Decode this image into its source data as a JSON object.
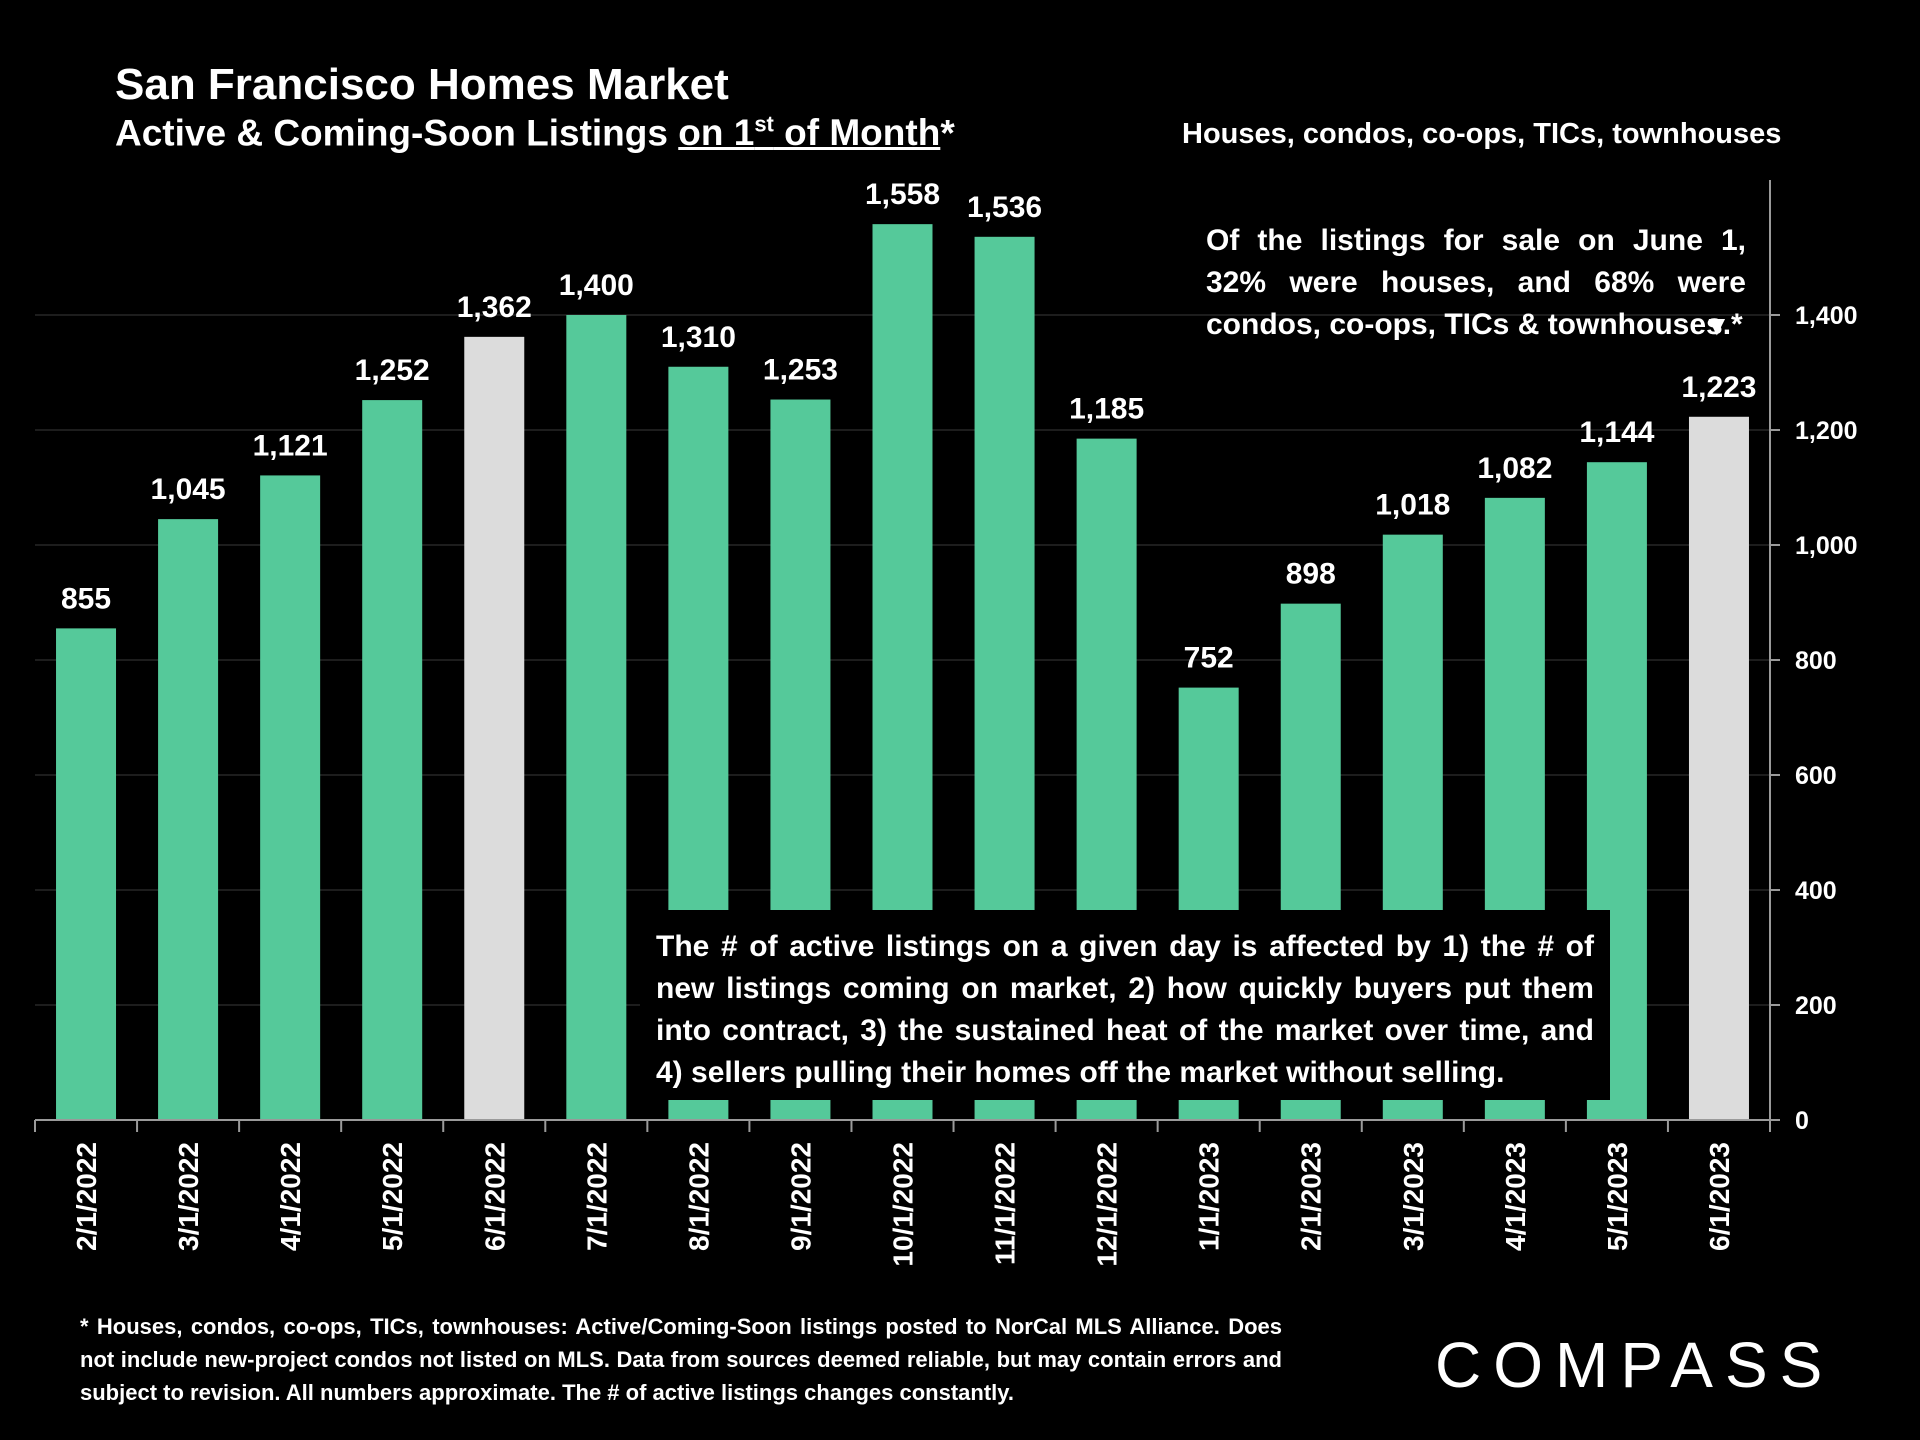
{
  "title": "San Francisco Homes Market",
  "subtitle": {
    "prefix": "Active & Coming-Soon Listings ",
    "underlined_pre": "on 1",
    "superscript": "st",
    "underlined_post": " of Month",
    "suffix": "*"
  },
  "scope": "Houses, condos, co-ops, TICs, townhouses",
  "note_top": "Of the listings for sale on June 1, 32% were houses, and 68% were condos, co-ops, TICs & townhouses.*",
  "arrow_glyph": "▼",
  "note_mid": "The # of active listings on a given day is affected by 1) the # of new listings coming on market, 2) how quickly buyers put them into contract, 3) the sustained heat of the market over time, and 4) sellers pulling their homes off the market without selling.",
  "footnote": "* Houses, condos, co-ops, TICs, townhouses: Active/Coming-Soon listings posted to NorCal MLS Alliance. Does not include new-project condos not listed on MLS. Data from sources deemed reliable, but may contain errors and subject to revision. All numbers approximate. The # of active listings changes constantly.",
  "logo": "COMPASS",
  "colors": {
    "bar": "#55C99A",
    "highlight": "#DCDCDC",
    "grid": "#3a3a3a",
    "axis": "#9a9a9a"
  },
  "chart_data": {
    "type": "bar",
    "title": "San Francisco Homes Market",
    "xlabel": "",
    "ylabel": "",
    "categories": [
      "2/1/2022",
      "3/1/2022",
      "4/1/2022",
      "5/1/2022",
      "6/1/2022",
      "7/1/2022",
      "8/1/2022",
      "9/1/2022",
      "10/1/2022",
      "11/1/2022",
      "12/1/2022",
      "1/1/2023",
      "2/1/2023",
      "3/1/2023",
      "4/1/2023",
      "5/1/2023",
      "6/1/2023"
    ],
    "values": [
      855,
      1045,
      1121,
      1252,
      1362,
      1400,
      1310,
      1253,
      1558,
      1536,
      1185,
      752,
      898,
      1018,
      1082,
      1144,
      1223
    ],
    "value_labels": [
      "855",
      "1,045",
      "1,121",
      "1,252",
      "1,362",
      "1,400",
      "1,310",
      "1,253",
      "1,558",
      "1,536",
      "1,185",
      "752",
      "898",
      "1,018",
      "1,082",
      "1,144",
      "1,223"
    ],
    "highlighted": [
      "6/1/2022",
      "6/1/2023"
    ],
    "ylim": [
      0,
      1600
    ],
    "yticks": [
      0,
      200,
      400,
      600,
      800,
      1000,
      1200,
      1400
    ],
    "ytick_labels": [
      "0",
      "200",
      "400",
      "600",
      "800",
      "1,000",
      "1,200",
      "1,400"
    ],
    "y_axis_side": "right",
    "grid": true
  }
}
